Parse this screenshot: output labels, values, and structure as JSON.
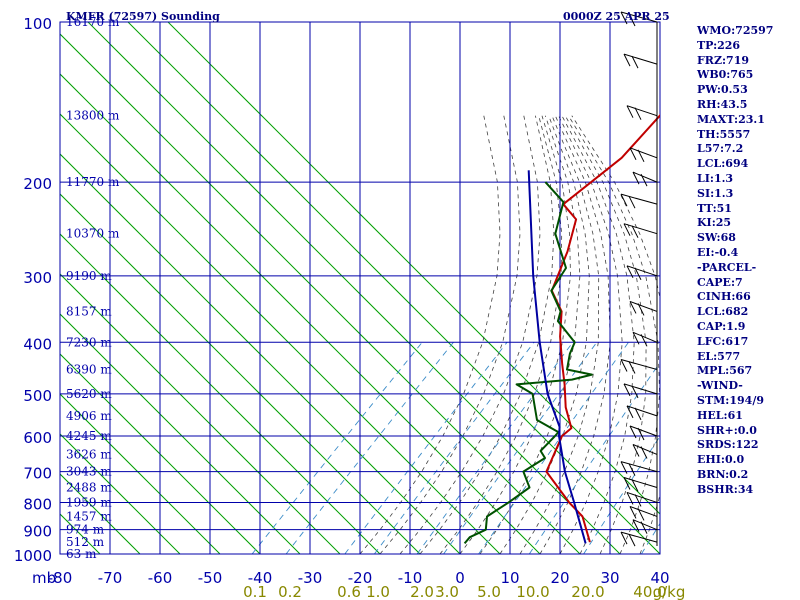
{
  "header": {
    "station": "KMFR (72597) Sounding",
    "time": "0000Z 25 APR 25"
  },
  "indices": [
    "WMO:72597",
    "TP:226",
    "FRZ:719",
    "WB0:765",
    "PW:0.53",
    "RH:43.5",
    "MAXT:23.1",
    "TH:5557",
    "L57:7.2",
    "LCL:694",
    "LI:1.3",
    "SI:1.3",
    "TT:51",
    "KI:25",
    "SW:68",
    "EI:-0.4",
    "-PARCEL-",
    "CAPE:7",
    "CINH:66",
    "LCL:682",
    "CAP:1.9",
    "LFC:617",
    "EL:577",
    "MPL:567",
    "-WIND-",
    "STM:194/9",
    "HEL:61",
    "SHR+:0.0",
    "SRDS:122",
    "EHI:0.0",
    "BRN:0.2",
    "BSHR:34"
  ],
  "axis": {
    "unit_label": "mb"
  },
  "colors": {
    "grid": "#0000aa",
    "dry_adiabat": "#00a000",
    "moist_adiabat": "#404040",
    "mixing_ratio": "#3c8cc8",
    "temperature": "#c00000",
    "dewpoint": "#005000",
    "parcel": "#0000a0",
    "text": "#000080",
    "mixing_label": "#888800"
  },
  "chart_data": {
    "type": "line",
    "title": "KMFR (72597) Sounding",
    "y_scale": "log-pressure (inverted)",
    "ylim": [
      1000,
      100
    ],
    "xlim": [
      -80,
      40
    ],
    "pressure_ticks": [
      100,
      200,
      300,
      400,
      500,
      600,
      700,
      800,
      900,
      1000
    ],
    "temperature_ticks": [
      -80,
      -70,
      -60,
      -50,
      -40,
      -30,
      -20,
      -10,
      0,
      10,
      20,
      30,
      40
    ],
    "height_labels": [
      {
        "p": 100,
        "text": "16170 m"
      },
      {
        "p": 150,
        "text": "13800 m"
      },
      {
        "p": 200,
        "text": "11770 m"
      },
      {
        "p": 250,
        "text": "10370 m"
      },
      {
        "p": 300,
        "text": "9190 m"
      },
      {
        "p": 350,
        "text": "8157 m"
      },
      {
        "p": 400,
        "text": "7230 m"
      },
      {
        "p": 450,
        "text": "6390 m"
      },
      {
        "p": 500,
        "text": "5620 m"
      },
      {
        "p": 550,
        "text": "4906 m"
      },
      {
        "p": 600,
        "text": "4245 m"
      },
      {
        "p": 650,
        "text": "3626 m"
      },
      {
        "p": 700,
        "text": "3043 m"
      },
      {
        "p": 750,
        "text": "2488 m"
      },
      {
        "p": 800,
        "text": "1959 m"
      },
      {
        "p": 850,
        "text": "1457 m"
      },
      {
        "p": 900,
        "text": "974 m"
      },
      {
        "p": 950,
        "text": "512 m"
      },
      {
        "p": 1000,
        "text": "63 m"
      }
    ],
    "mixing_ratio_labels": [
      "0.1",
      "0.2",
      "0.6",
      "1.0",
      "2.0",
      "3.0",
      "5.0",
      "10.0",
      "20.0",
      "40.0"
    ],
    "mixing_ratio_values": [
      0.1,
      0.2,
      0.6,
      1.0,
      2.0,
      3.0,
      5.0,
      10.0,
      20.0,
      40.0
    ],
    "mixing_ratio_unit": "g/kg",
    "series": [
      {
        "key": "temperature",
        "points": [
          [
            100,
            -52.7
          ],
          [
            150,
            -47.7
          ],
          [
            180,
            -46.9
          ],
          [
            220,
            -49.3
          ],
          [
            235,
            -43.7
          ],
          [
            270,
            -39.0
          ],
          [
            320,
            -34.3
          ],
          [
            350,
            -28.2
          ],
          [
            390,
            -23.5
          ],
          [
            440,
            -17.5
          ],
          [
            480,
            -13.0
          ],
          [
            530,
            -8.2
          ],
          [
            580,
            -2.9
          ],
          [
            600,
            -3.2
          ],
          [
            700,
            0.8
          ],
          [
            800,
            11.5
          ],
          [
            850,
            17.0
          ],
          [
            950,
            23.6
          ]
        ]
      },
      {
        "key": "dewpoint",
        "points": [
          [
            200,
            -57.3
          ],
          [
            218,
            -49.7
          ],
          [
            250,
            -45.0
          ],
          [
            290,
            -36.0
          ],
          [
            320,
            -34.4
          ],
          [
            350,
            -28.4
          ],
          [
            365,
            -27.0
          ],
          [
            400,
            -19.4
          ],
          [
            420,
            -18.1
          ],
          [
            450,
            -15.5
          ],
          [
            460,
            -9.5
          ],
          [
            470,
            -12.5
          ],
          [
            480,
            -22.6
          ],
          [
            500,
            -17.5
          ],
          [
            560,
            -11.4
          ],
          [
            590,
            -4.7
          ],
          [
            600,
            -4.6
          ],
          [
            640,
            -4.5
          ],
          [
            660,
            -2.2
          ],
          [
            700,
            -3.8
          ],
          [
            750,
            0.6
          ],
          [
            800,
            -0.6
          ],
          [
            850,
            -2.1
          ],
          [
            900,
            0.3
          ],
          [
            930,
            -1.4
          ],
          [
            955,
            -1.2
          ]
        ]
      },
      {
        "key": "parcel",
        "points": [
          [
            190,
            -63.0
          ],
          [
            300,
            -41.0
          ],
          [
            400,
            -26.4
          ],
          [
            500,
            -14.5
          ],
          [
            577,
            -5.5
          ],
          [
            600,
            -3.8
          ],
          [
            700,
            4.5
          ],
          [
            800,
            12.5
          ],
          [
            955,
            23.0
          ]
        ]
      }
    ],
    "wind_levels_mb": [
      100,
      120,
      150,
      180,
      200,
      220,
      250,
      300,
      350,
      400,
      450,
      500,
      550,
      600,
      650,
      700,
      750,
      800,
      850,
      900,
      950
    ]
  }
}
